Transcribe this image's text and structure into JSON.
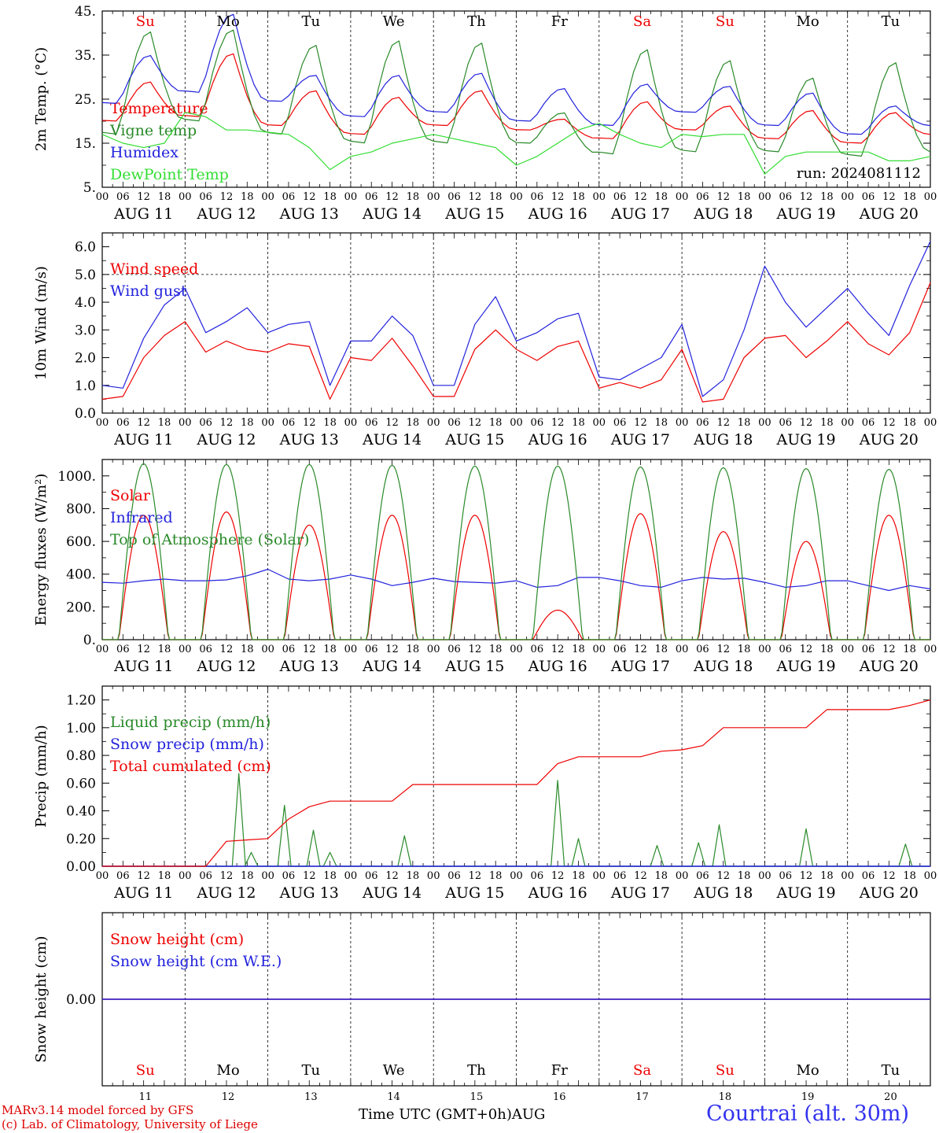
{
  "chart_data": {
    "type": "line",
    "run_label": "run: 2024081112",
    "days": [
      "Su",
      "Mo",
      "Tu",
      "We",
      "Th",
      "Fr",
      "Sa",
      "Su",
      "Mo",
      "Tu"
    ],
    "day_colors": [
      "#ee0000",
      "#000000",
      "#000000",
      "#000000",
      "#000000",
      "#000000",
      "#ee0000",
      "#ee0000",
      "#000000",
      "#000000"
    ],
    "date_labels": [
      "AUG 11",
      "AUG 12",
      "AUG 13",
      "AUG 14",
      "AUG 15",
      "AUG 16",
      "AUG 17",
      "AUG 18",
      "AUG 19",
      "AUG 20"
    ],
    "hour_ticks": [
      "00",
      "06",
      "12",
      "18"
    ],
    "end_tick": "00",
    "bottom_day_numbers": [
      "11",
      "12",
      "13",
      "14",
      "15",
      "16",
      "17",
      "18",
      "19",
      "20"
    ],
    "panels": [
      {
        "ylabel": "2m Temp. (°C)",
        "ylim": [
          5,
          45
        ],
        "yticks": [
          5,
          15,
          25,
          35,
          45
        ],
        "ytick_labels": [
          "5.",
          "15.",
          "25.",
          "35.",
          "45."
        ],
        "show_days": true,
        "series": [
          {
            "name": "Temperature",
            "color": "#ee0000",
            "kind": "diurnal",
            "min": [
              20,
              21,
              19,
              17,
              19,
              18,
              16,
              18,
              16,
              15
            ],
            "max": [
              29,
              35.5,
              27,
              25.5,
              27,
              20.5,
              24.5,
              23.5,
              22.5,
              22
            ],
            "end": 17
          },
          {
            "name": "Vigne temp",
            "color": "#2a8a2a",
            "kind": "diurnal",
            "min": [
              17,
              20,
              17,
              15,
              15,
              15,
              12.5,
              13,
              13,
              12
            ],
            "max": [
              40.5,
              41,
              37.5,
              38.5,
              38,
              22,
              36.5,
              34,
              30,
              33.5
            ],
            "end": 13
          },
          {
            "name": "Humidex",
            "color": "#2222dd",
            "kind": "diurnal",
            "min": [
              24,
              26.5,
              24.5,
              21,
              22,
              20,
              19,
              22,
              19,
              17
            ],
            "max": [
              35,
              44.5,
              30.5,
              30.5,
              31,
              27.5,
              28.5,
              28,
              26.5,
              23.5
            ],
            "end": 19
          },
          {
            "name": "DewPoint Temp",
            "color": "#33dd33",
            "kind": "points",
            "values": [
              17,
              15,
              14,
              15,
              22,
              21,
              18,
              18,
              17.5,
              17,
              14,
              9,
              12,
              13,
              15,
              16,
              17,
              16,
              15,
              14,
              10,
              12,
              15,
              18,
              19.5,
              17,
              15,
              14,
              17,
              16.5,
              17,
              17,
              8,
              12,
              13,
              13,
              13,
              13,
              11,
              11,
              12
            ]
          }
        ]
      },
      {
        "ylabel": "10m Wind (m/s)",
        "ylim": [
          0,
          6.5
        ],
        "yticks": [
          0,
          1,
          2,
          3,
          4,
          5,
          6
        ],
        "ytick_labels": [
          "0.0",
          "1.0",
          "2.0",
          "3.0",
          "4.0",
          "5.0",
          "6.0"
        ],
        "ref_line": 5.0,
        "series": [
          {
            "name": "Wind speed",
            "color": "#ee0000",
            "kind": "points",
            "values": [
              0.5,
              0.6,
              2.0,
              2.8,
              3.3,
              2.2,
              2.6,
              2.3,
              2.2,
              2.5,
              2.4,
              0.5,
              2.0,
              1.9,
              2.7,
              1.7,
              0.6,
              0.6,
              2.3,
              3.0,
              2.3,
              1.9,
              2.4,
              2.6,
              0.9,
              1.1,
              0.9,
              1.2,
              2.3,
              0.4,
              0.5,
              2.0,
              2.7,
              2.8,
              2.0,
              2.6,
              3.3,
              2.5,
              2.1,
              2.9,
              4.7
            ]
          },
          {
            "name": "Wind gust",
            "color": "#2222dd",
            "kind": "points",
            "values": [
              1.0,
              0.9,
              2.7,
              3.9,
              4.5,
              2.9,
              3.3,
              3.8,
              2.9,
              3.2,
              3.3,
              1.0,
              2.6,
              2.6,
              3.5,
              2.8,
              1.0,
              1.0,
              3.2,
              4.2,
              2.6,
              2.9,
              3.4,
              3.6,
              1.3,
              1.2,
              1.6,
              2.0,
              3.2,
              0.6,
              1.2,
              3.0,
              5.3,
              4.0,
              3.1,
              3.8,
              4.5,
              3.6,
              2.8,
              4.6,
              6.2
            ]
          }
        ]
      },
      {
        "ylabel": "Energy fluxes (W/m²)",
        "ylim": [
          0,
          1100
        ],
        "yticks": [
          0,
          200,
          400,
          600,
          800,
          1000
        ],
        "ytick_labels": [
          "0.",
          "200.",
          "400.",
          "600.",
          "800.",
          "1000."
        ],
        "series": [
          {
            "name": "Solar",
            "color": "#ee0000",
            "kind": "bell",
            "peaks": [
              760,
              780,
              700,
              760,
              760,
              180,
              770,
              660,
              600,
              760
            ]
          },
          {
            "name": "Infrared",
            "color": "#2222dd",
            "kind": "points",
            "values": [
              350,
              345,
              360,
              370,
              360,
              360,
              365,
              390,
              430,
              370,
              360,
              370,
              395,
              370,
              330,
              350,
              375,
              355,
              350,
              345,
              360,
              320,
              330,
              380,
              380,
              360,
              330,
              320,
              360,
              380,
              370,
              375,
              350,
              320,
              330,
              360,
              360,
              330,
              300,
              330,
              310
            ]
          },
          {
            "name": "Top of Atmosphere (Solar)",
            "color": "#2a8a2a",
            "kind": "bell",
            "peaks": [
              1075,
              1070,
              1070,
              1065,
              1060,
              1060,
              1055,
              1050,
              1045,
              1040
            ]
          }
        ]
      },
      {
        "ylabel": "Precip (mm/h)",
        "ylim": [
          0,
          1.3
        ],
        "yticks": [
          0,
          0.2,
          0.4,
          0.6,
          0.8,
          1.0,
          1.2
        ],
        "ytick_labels": [
          "0.00",
          "0.20",
          "0.40",
          "0.60",
          "0.80",
          "1.00",
          "1.20"
        ],
        "series": [
          {
            "name": "Liquid precip (mm/h)",
            "color": "#2a8a2a",
            "kind": "pulses",
            "pulses": [
              [
                1.65,
                0.67
              ],
              [
                1.8,
                0.1
              ],
              [
                2.2,
                0.44
              ],
              [
                2.55,
                0.26
              ],
              [
                2.75,
                0.1
              ],
              [
                3.65,
                0.22
              ],
              [
                5.5,
                0.62
              ],
              [
                5.75,
                0.2
              ],
              [
                6.7,
                0.15
              ],
              [
                7.2,
                0.17
              ],
              [
                7.45,
                0.3
              ],
              [
                8.5,
                0.27
              ],
              [
                9.7,
                0.16
              ]
            ]
          },
          {
            "name": "Snow precip (mm/h)",
            "color": "#2222dd",
            "kind": "zero"
          },
          {
            "name": "Total cumulated (cm)",
            "color": "#ee0000",
            "kind": "points",
            "values": [
              0,
              0,
              0,
              0,
              0,
              0,
              0.18,
              0.19,
              0.2,
              0.34,
              0.43,
              0.47,
              0.47,
              0.47,
              0.47,
              0.59,
              0.59,
              0.59,
              0.59,
              0.59,
              0.59,
              0.59,
              0.74,
              0.79,
              0.79,
              0.79,
              0.79,
              0.83,
              0.84,
              0.87,
              1.0,
              1.0,
              1.0,
              1.0,
              1.0,
              1.13,
              1.13,
              1.13,
              1.13,
              1.16,
              1.2
            ]
          }
        ]
      },
      {
        "ylabel": "Snow height (cm)",
        "ylim": [
          -1,
          1
        ],
        "yticks": [
          0
        ],
        "ytick_labels": [
          "0.00"
        ],
        "show_bottom_days": true,
        "series": [
          {
            "name": "Snow height (cm)",
            "color": "#ee0000",
            "kind": "zero"
          },
          {
            "name": "Snow height (cm W.E.)",
            "color": "#2222dd",
            "kind": "zero"
          }
        ]
      }
    ]
  },
  "footer": {
    "credit_line1": "MARv3.14 model forced by GFS",
    "credit_line2": "(c) Lab. of Climatology, University of Liege",
    "x_title": "Time UTC (GMT+0h)AUG",
    "location": "Courtrai (alt. 30m)"
  }
}
